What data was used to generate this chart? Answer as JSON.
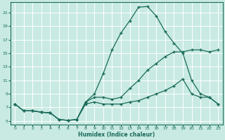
{
  "xlabel": "Humidex (Indice chaleur)",
  "background_color": "#c8eae2",
  "grid_color": "#ffffff",
  "line_color": "#1a6b5a",
  "xlim": [
    -0.5,
    23.5
  ],
  "ylim": [
    4.5,
    22.5
  ],
  "xticks": [
    0,
    1,
    2,
    3,
    4,
    5,
    6,
    7,
    8,
    9,
    10,
    11,
    12,
    13,
    14,
    15,
    16,
    17,
    18,
    19,
    20,
    21,
    22,
    23
  ],
  "yticks": [
    5,
    7,
    9,
    11,
    13,
    15,
    17,
    19,
    21
  ],
  "line_max_x": [
    0,
    1,
    2,
    3,
    4,
    5,
    6,
    7,
    8,
    9,
    10,
    11,
    12,
    13,
    14,
    15,
    16,
    17,
    18,
    19,
    20,
    21,
    22,
    23
  ],
  "line_max_y": [
    7.5,
    6.5,
    6.5,
    6.3,
    6.2,
    5.2,
    5.1,
    5.2,
    7.8,
    9.0,
    12.0,
    15.5,
    18.0,
    19.8,
    21.8,
    21.9,
    20.5,
    18.2,
    16.5,
    15.0,
    11.0,
    9.0,
    8.5,
    7.5
  ],
  "line_mid_x": [
    0,
    1,
    2,
    3,
    4,
    5,
    6,
    7,
    8,
    9,
    10,
    11,
    12,
    13,
    14,
    15,
    16,
    17,
    18,
    19,
    20,
    21,
    22,
    23
  ],
  "line_mid_y": [
    7.5,
    6.5,
    6.5,
    6.3,
    6.2,
    5.2,
    5.1,
    5.2,
    7.8,
    8.5,
    8.5,
    8.2,
    8.5,
    9.8,
    11.0,
    12.5,
    13.5,
    14.5,
    15.2,
    15.2,
    15.5,
    15.5,
    15.2,
    15.5
  ],
  "line_min_x": [
    0,
    1,
    2,
    3,
    4,
    5,
    6,
    7,
    8,
    9,
    10,
    11,
    12,
    13,
    14,
    15,
    16,
    17,
    18,
    19,
    20,
    21,
    22,
    23
  ],
  "line_min_y": [
    7.5,
    6.5,
    6.5,
    6.3,
    6.2,
    5.2,
    5.1,
    5.2,
    7.5,
    7.8,
    7.5,
    7.5,
    7.5,
    7.8,
    8.0,
    8.5,
    9.0,
    9.5,
    10.2,
    11.2,
    9.0,
    8.5,
    8.5,
    7.5
  ]
}
